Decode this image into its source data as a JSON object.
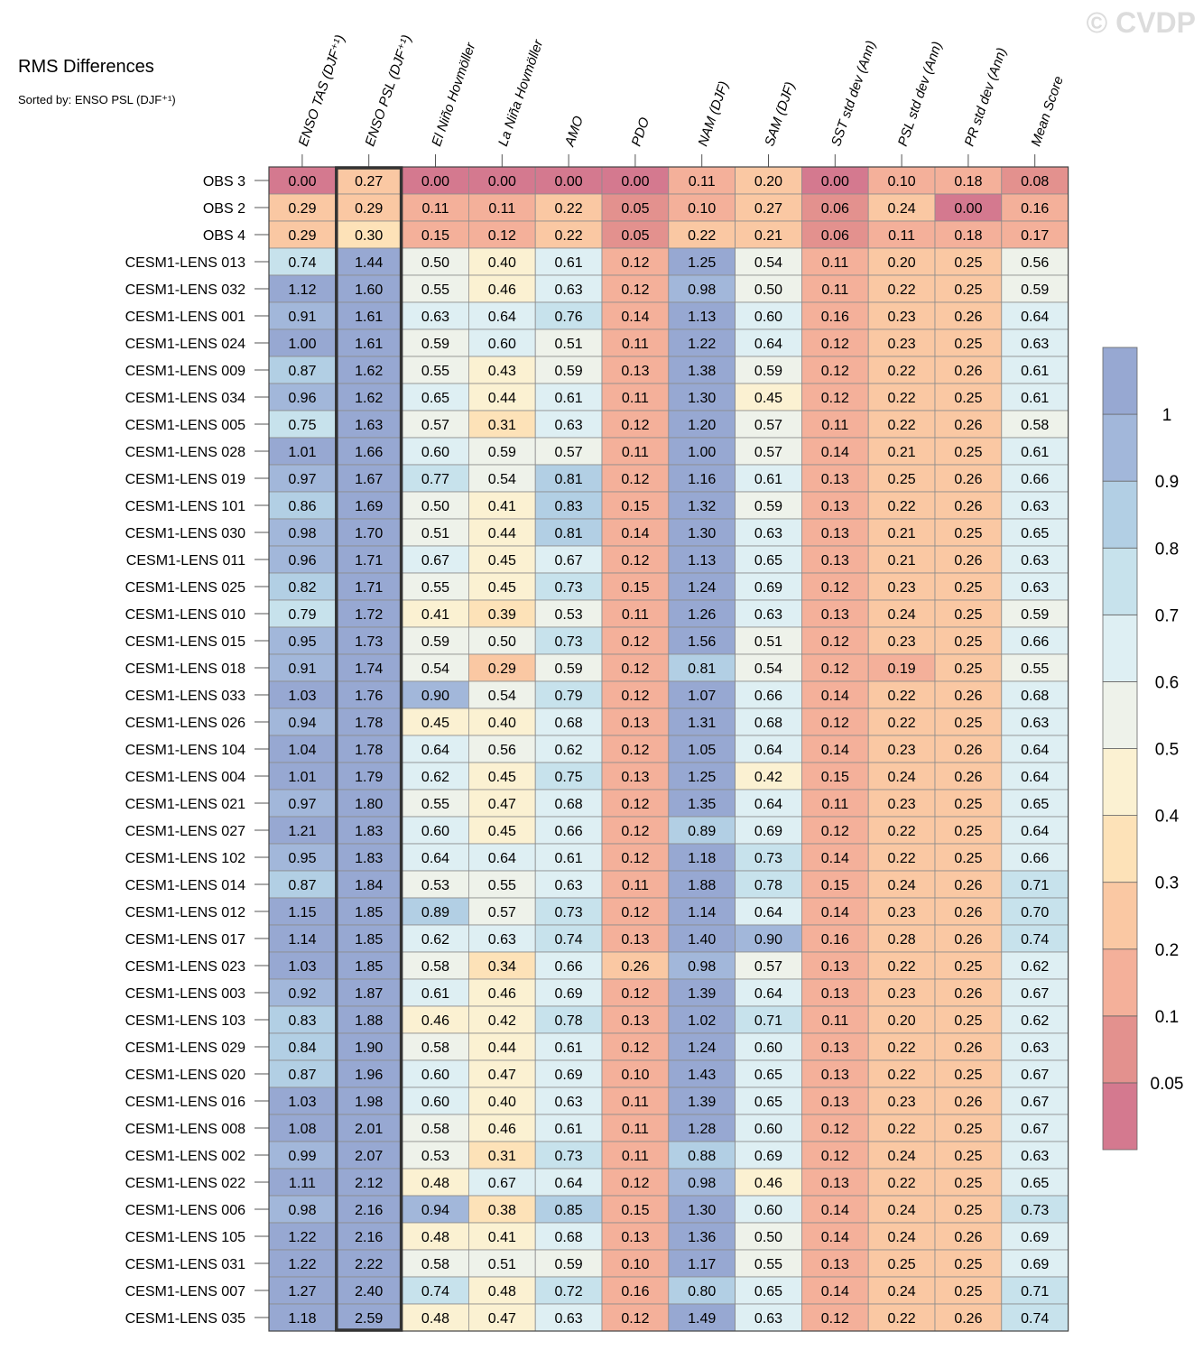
{
  "watermark": "© CVDP",
  "chart_data": {
    "type": "heatmap",
    "title": "RMS Differences",
    "subtitle": "Sorted by: ENSO PSL (DJF⁺¹)",
    "columns": [
      "ENSO TAS (DJF⁺¹)",
      "ENSO PSL (DJF⁺¹)",
      "El Niño Hovmöller",
      "La Niña Hovmöller",
      "AMO",
      "PDO",
      "NAM (DJF)",
      "SAM (DJF)",
      "SST std dev (Ann)",
      "PSL std dev (Ann)",
      "PR std dev (Ann)",
      "Mean Score"
    ],
    "highlighted_column": "ENSO PSL (DJF⁺¹)",
    "rows": [
      {
        "name": "OBS 3",
        "values": [
          "0.00",
          "0.27",
          "0.00",
          "0.00",
          "0.00",
          "0.00",
          "0.11",
          "0.20",
          "0.00",
          "0.10",
          "0.18",
          "0.08"
        ]
      },
      {
        "name": "OBS 2",
        "values": [
          "0.29",
          "0.29",
          "0.11",
          "0.11",
          "0.22",
          "0.05",
          "0.10",
          "0.27",
          "0.06",
          "0.24",
          "0.00",
          "0.16"
        ]
      },
      {
        "name": "OBS 4",
        "values": [
          "0.29",
          "0.30",
          "0.15",
          "0.12",
          "0.22",
          "0.05",
          "0.22",
          "0.21",
          "0.06",
          "0.11",
          "0.18",
          "0.17"
        ]
      },
      {
        "name": "CESM1-LENS 013",
        "values": [
          "0.74",
          "1.44",
          "0.50",
          "0.40",
          "0.61",
          "0.12",
          "1.25",
          "0.54",
          "0.11",
          "0.20",
          "0.25",
          "0.56"
        ]
      },
      {
        "name": "CESM1-LENS 032",
        "values": [
          "1.12",
          "1.60",
          "0.55",
          "0.46",
          "0.63",
          "0.12",
          "0.98",
          "0.50",
          "0.11",
          "0.22",
          "0.25",
          "0.59"
        ]
      },
      {
        "name": "CESM1-LENS 001",
        "values": [
          "0.91",
          "1.61",
          "0.63",
          "0.64",
          "0.76",
          "0.14",
          "1.13",
          "0.60",
          "0.16",
          "0.23",
          "0.26",
          "0.64"
        ]
      },
      {
        "name": "CESM1-LENS 024",
        "values": [
          "1.00",
          "1.61",
          "0.59",
          "0.60",
          "0.51",
          "0.11",
          "1.22",
          "0.64",
          "0.12",
          "0.23",
          "0.25",
          "0.63"
        ]
      },
      {
        "name": "CESM1-LENS 009",
        "values": [
          "0.87",
          "1.62",
          "0.55",
          "0.43",
          "0.59",
          "0.13",
          "1.38",
          "0.59",
          "0.12",
          "0.22",
          "0.26",
          "0.61"
        ]
      },
      {
        "name": "CESM1-LENS 034",
        "values": [
          "0.96",
          "1.62",
          "0.65",
          "0.44",
          "0.61",
          "0.11",
          "1.30",
          "0.45",
          "0.12",
          "0.22",
          "0.25",
          "0.61"
        ]
      },
      {
        "name": "CESM1-LENS 005",
        "values": [
          "0.75",
          "1.63",
          "0.57",
          "0.31",
          "0.63",
          "0.12",
          "1.20",
          "0.57",
          "0.11",
          "0.22",
          "0.26",
          "0.58"
        ]
      },
      {
        "name": "CESM1-LENS 028",
        "values": [
          "1.01",
          "1.66",
          "0.60",
          "0.59",
          "0.57",
          "0.11",
          "1.00",
          "0.57",
          "0.14",
          "0.21",
          "0.25",
          "0.61"
        ]
      },
      {
        "name": "CESM1-LENS 019",
        "values": [
          "0.97",
          "1.67",
          "0.77",
          "0.54",
          "0.81",
          "0.12",
          "1.16",
          "0.61",
          "0.13",
          "0.25",
          "0.26",
          "0.66"
        ]
      },
      {
        "name": "CESM1-LENS 101",
        "values": [
          "0.86",
          "1.69",
          "0.50",
          "0.41",
          "0.83",
          "0.15",
          "1.32",
          "0.59",
          "0.13",
          "0.22",
          "0.26",
          "0.63"
        ]
      },
      {
        "name": "CESM1-LENS 030",
        "values": [
          "0.98",
          "1.70",
          "0.51",
          "0.44",
          "0.81",
          "0.14",
          "1.30",
          "0.63",
          "0.13",
          "0.21",
          "0.25",
          "0.65"
        ]
      },
      {
        "name": "CESM1-LENS 011",
        "values": [
          "0.96",
          "1.71",
          "0.67",
          "0.45",
          "0.67",
          "0.12",
          "1.13",
          "0.65",
          "0.13",
          "0.21",
          "0.26",
          "0.63"
        ]
      },
      {
        "name": "CESM1-LENS 025",
        "values": [
          "0.82",
          "1.71",
          "0.55",
          "0.45",
          "0.73",
          "0.15",
          "1.24",
          "0.69",
          "0.12",
          "0.23",
          "0.25",
          "0.63"
        ]
      },
      {
        "name": "CESM1-LENS 010",
        "values": [
          "0.79",
          "1.72",
          "0.41",
          "0.39",
          "0.53",
          "0.11",
          "1.26",
          "0.63",
          "0.13",
          "0.24",
          "0.25",
          "0.59"
        ]
      },
      {
        "name": "CESM1-LENS 015",
        "values": [
          "0.95",
          "1.73",
          "0.59",
          "0.50",
          "0.73",
          "0.12",
          "1.56",
          "0.51",
          "0.12",
          "0.23",
          "0.25",
          "0.66"
        ]
      },
      {
        "name": "CESM1-LENS 018",
        "values": [
          "0.91",
          "1.74",
          "0.54",
          "0.29",
          "0.59",
          "0.12",
          "0.81",
          "0.54",
          "0.12",
          "0.19",
          "0.25",
          "0.55"
        ]
      },
      {
        "name": "CESM1-LENS 033",
        "values": [
          "1.03",
          "1.76",
          "0.90",
          "0.54",
          "0.79",
          "0.12",
          "1.07",
          "0.66",
          "0.14",
          "0.22",
          "0.26",
          "0.68"
        ]
      },
      {
        "name": "CESM1-LENS 026",
        "values": [
          "0.94",
          "1.78",
          "0.45",
          "0.40",
          "0.68",
          "0.13",
          "1.31",
          "0.68",
          "0.12",
          "0.22",
          "0.25",
          "0.63"
        ]
      },
      {
        "name": "CESM1-LENS 104",
        "values": [
          "1.04",
          "1.78",
          "0.64",
          "0.56",
          "0.62",
          "0.12",
          "1.05",
          "0.64",
          "0.14",
          "0.23",
          "0.26",
          "0.64"
        ]
      },
      {
        "name": "CESM1-LENS 004",
        "values": [
          "1.01",
          "1.79",
          "0.62",
          "0.45",
          "0.75",
          "0.13",
          "1.25",
          "0.42",
          "0.15",
          "0.24",
          "0.26",
          "0.64"
        ]
      },
      {
        "name": "CESM1-LENS 021",
        "values": [
          "0.97",
          "1.80",
          "0.55",
          "0.47",
          "0.68",
          "0.12",
          "1.35",
          "0.64",
          "0.11",
          "0.23",
          "0.25",
          "0.65"
        ]
      },
      {
        "name": "CESM1-LENS 027",
        "values": [
          "1.21",
          "1.83",
          "0.60",
          "0.45",
          "0.66",
          "0.12",
          "0.89",
          "0.69",
          "0.12",
          "0.22",
          "0.25",
          "0.64"
        ]
      },
      {
        "name": "CESM1-LENS 102",
        "values": [
          "0.95",
          "1.83",
          "0.64",
          "0.64",
          "0.61",
          "0.12",
          "1.18",
          "0.73",
          "0.14",
          "0.22",
          "0.25",
          "0.66"
        ]
      },
      {
        "name": "CESM1-LENS 014",
        "values": [
          "0.87",
          "1.84",
          "0.53",
          "0.55",
          "0.63",
          "0.11",
          "1.88",
          "0.78",
          "0.15",
          "0.24",
          "0.26",
          "0.71"
        ]
      },
      {
        "name": "CESM1-LENS 012",
        "values": [
          "1.15",
          "1.85",
          "0.89",
          "0.57",
          "0.73",
          "0.12",
          "1.14",
          "0.64",
          "0.14",
          "0.23",
          "0.26",
          "0.70"
        ]
      },
      {
        "name": "CESM1-LENS 017",
        "values": [
          "1.14",
          "1.85",
          "0.62",
          "0.63",
          "0.74",
          "0.13",
          "1.40",
          "0.90",
          "0.16",
          "0.28",
          "0.26",
          "0.74"
        ]
      },
      {
        "name": "CESM1-LENS 023",
        "values": [
          "1.03",
          "1.85",
          "0.58",
          "0.34",
          "0.66",
          "0.26",
          "0.98",
          "0.57",
          "0.13",
          "0.22",
          "0.25",
          "0.62"
        ]
      },
      {
        "name": "CESM1-LENS 003",
        "values": [
          "0.92",
          "1.87",
          "0.61",
          "0.46",
          "0.69",
          "0.12",
          "1.39",
          "0.64",
          "0.13",
          "0.23",
          "0.26",
          "0.67"
        ]
      },
      {
        "name": "CESM1-LENS 103",
        "values": [
          "0.83",
          "1.88",
          "0.46",
          "0.42",
          "0.78",
          "0.13",
          "1.02",
          "0.71",
          "0.11",
          "0.20",
          "0.25",
          "0.62"
        ]
      },
      {
        "name": "CESM1-LENS 029",
        "values": [
          "0.84",
          "1.90",
          "0.58",
          "0.44",
          "0.61",
          "0.12",
          "1.24",
          "0.60",
          "0.13",
          "0.22",
          "0.26",
          "0.63"
        ]
      },
      {
        "name": "CESM1-LENS 020",
        "values": [
          "0.87",
          "1.96",
          "0.60",
          "0.47",
          "0.69",
          "0.10",
          "1.43",
          "0.65",
          "0.13",
          "0.22",
          "0.25",
          "0.67"
        ]
      },
      {
        "name": "CESM1-LENS 016",
        "values": [
          "1.03",
          "1.98",
          "0.60",
          "0.40",
          "0.63",
          "0.11",
          "1.39",
          "0.65",
          "0.13",
          "0.23",
          "0.26",
          "0.67"
        ]
      },
      {
        "name": "CESM1-LENS 008",
        "values": [
          "1.08",
          "2.01",
          "0.58",
          "0.46",
          "0.61",
          "0.11",
          "1.28",
          "0.60",
          "0.12",
          "0.22",
          "0.25",
          "0.67"
        ]
      },
      {
        "name": "CESM1-LENS 002",
        "values": [
          "0.99",
          "2.07",
          "0.53",
          "0.31",
          "0.73",
          "0.11",
          "0.88",
          "0.69",
          "0.12",
          "0.24",
          "0.25",
          "0.63"
        ]
      },
      {
        "name": "CESM1-LENS 022",
        "values": [
          "1.11",
          "2.12",
          "0.48",
          "0.67",
          "0.64",
          "0.12",
          "0.98",
          "0.46",
          "0.13",
          "0.22",
          "0.25",
          "0.65"
        ]
      },
      {
        "name": "CESM1-LENS 006",
        "values": [
          "0.98",
          "2.16",
          "0.94",
          "0.38",
          "0.85",
          "0.15",
          "1.30",
          "0.60",
          "0.14",
          "0.24",
          "0.25",
          "0.73"
        ]
      },
      {
        "name": "CESM1-LENS 105",
        "values": [
          "1.22",
          "2.16",
          "0.48",
          "0.41",
          "0.68",
          "0.13",
          "1.36",
          "0.50",
          "0.14",
          "0.24",
          "0.26",
          "0.69"
        ]
      },
      {
        "name": "CESM1-LENS 031",
        "values": [
          "1.22",
          "2.22",
          "0.58",
          "0.51",
          "0.59",
          "0.10",
          "1.17",
          "0.55",
          "0.13",
          "0.25",
          "0.25",
          "0.69"
        ]
      },
      {
        "name": "CESM1-LENS 007",
        "values": [
          "1.27",
          "2.40",
          "0.74",
          "0.48",
          "0.72",
          "0.16",
          "0.80",
          "0.65",
          "0.14",
          "0.24",
          "0.25",
          "0.71"
        ]
      },
      {
        "name": "CESM1-LENS 035",
        "values": [
          "1.18",
          "2.59",
          "0.48",
          "0.47",
          "0.63",
          "0.12",
          "1.49",
          "0.63",
          "0.12",
          "0.22",
          "0.26",
          "0.74"
        ]
      }
    ],
    "colorbar": {
      "levels": [
        "0.05",
        "0.1",
        "0.2",
        "0.3",
        "0.4",
        "0.5",
        "0.6",
        "0.7",
        "0.8",
        "0.9",
        "1"
      ],
      "colors": [
        "#d4798f",
        "#e3918e",
        "#f4b09a",
        "#fac8a3",
        "#fde2b8",
        "#fbf1d2",
        "#eef2ea",
        "#deeff3",
        "#c7e2ec",
        "#b2cfe4",
        "#a2b7da",
        "#97a8d2"
      ]
    }
  }
}
